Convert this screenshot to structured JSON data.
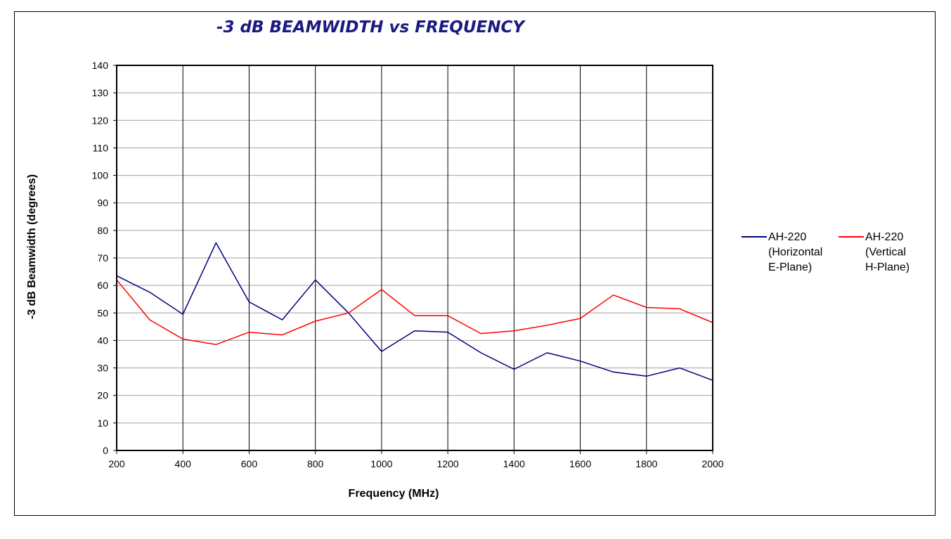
{
  "chart_data": {
    "type": "line",
    "title": "-3 dB BEAMWIDTH vs FREQUENCY",
    "xlabel": "Frequency (MHz)",
    "ylabel": "-3 dB Beamwidth (degrees)",
    "xlim": [
      200,
      2000
    ],
    "ylim": [
      0,
      140
    ],
    "xticks": [
      "200",
      "400",
      "600",
      "800",
      "1000",
      "1200",
      "1400",
      "1600",
      "1800",
      "2000"
    ],
    "yticks": [
      "0",
      "10",
      "20",
      "30",
      "40",
      "50",
      "60",
      "70",
      "80",
      "90",
      "100",
      "110",
      "120",
      "130",
      "140"
    ],
    "x": [
      200,
      300,
      400,
      500,
      600,
      700,
      800,
      900,
      1000,
      1100,
      1200,
      1300,
      1400,
      1500,
      1600,
      1700,
      1800,
      1900,
      2000
    ],
    "grid": true,
    "legend_position": "right",
    "series": [
      {
        "name": "AH-220 (Horizontal E-Plane)",
        "legend_lines": [
          "AH-220",
          "(Horizontal",
          "E-Plane)"
        ],
        "color": "#000080",
        "values": [
          63.5,
          57.5,
          49.5,
          75.5,
          54,
          47.5,
          62,
          50,
          36,
          43.5,
          43,
          35.5,
          29.5,
          35.5,
          32.5,
          28.5,
          27,
          30,
          25.5
        ]
      },
      {
        "name": "AH-220 (Vertical H-Plane)",
        "legend_lines": [
          "AH-220",
          "(Vertical",
          "H-Plane)"
        ],
        "color": "#ff0000",
        "values": [
          62,
          47.5,
          40.5,
          38.5,
          43,
          42,
          47,
          50,
          58.5,
          49,
          49,
          42.5,
          43.5,
          45.5,
          48,
          56.5,
          52,
          51.5,
          46.5
        ]
      }
    ]
  }
}
